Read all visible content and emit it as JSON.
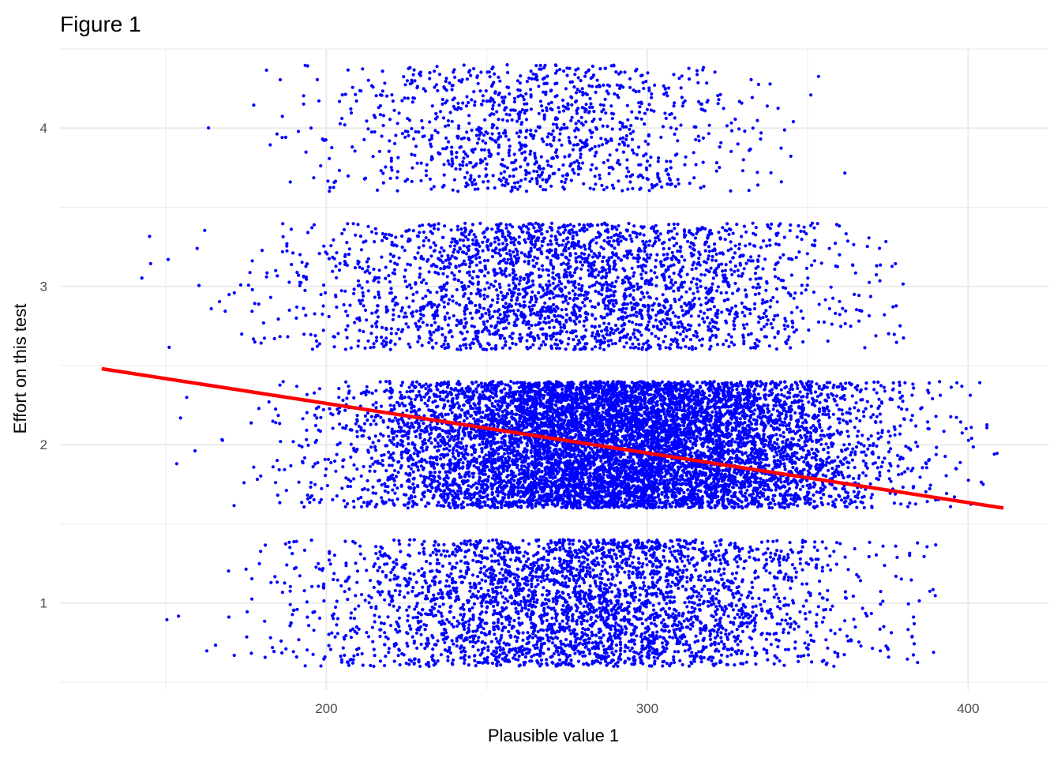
{
  "chart_data": {
    "type": "scatter",
    "title": "Figure 1",
    "xlabel": "Plausible value 1",
    "ylabel": "Effort on this test",
    "xlim": [
      117,
      425
    ],
    "ylim": [
      0.45,
      4.5
    ],
    "x_ticks": [
      200,
      300,
      400
    ],
    "y_ticks": [
      1,
      2,
      3,
      4
    ],
    "grid": true,
    "legend": "none",
    "point_color": "#0000ff",
    "jitter_height": 0.4,
    "series": [
      {
        "values_by_level": [
          {
            "y": 1,
            "n": 3400,
            "x_mean": 280,
            "x_sd": 40,
            "x_min": 150,
            "x_max": 390
          },
          {
            "y": 2,
            "n": 9000,
            "x_mean": 290,
            "x_sd": 38,
            "x_min": 145,
            "x_max": 411
          },
          {
            "y": 3,
            "n": 2700,
            "x_mean": 277,
            "x_sd": 40,
            "x_min": 140,
            "x_max": 380
          },
          {
            "y": 4,
            "n": 1100,
            "x_mean": 265,
            "x_sd": 32,
            "x_min": 130,
            "x_max": 367
          }
        ]
      }
    ],
    "fit_line": {
      "color": "#ff0000",
      "x": [
        130,
        411
      ],
      "y": [
        2.48,
        1.6
      ]
    }
  }
}
